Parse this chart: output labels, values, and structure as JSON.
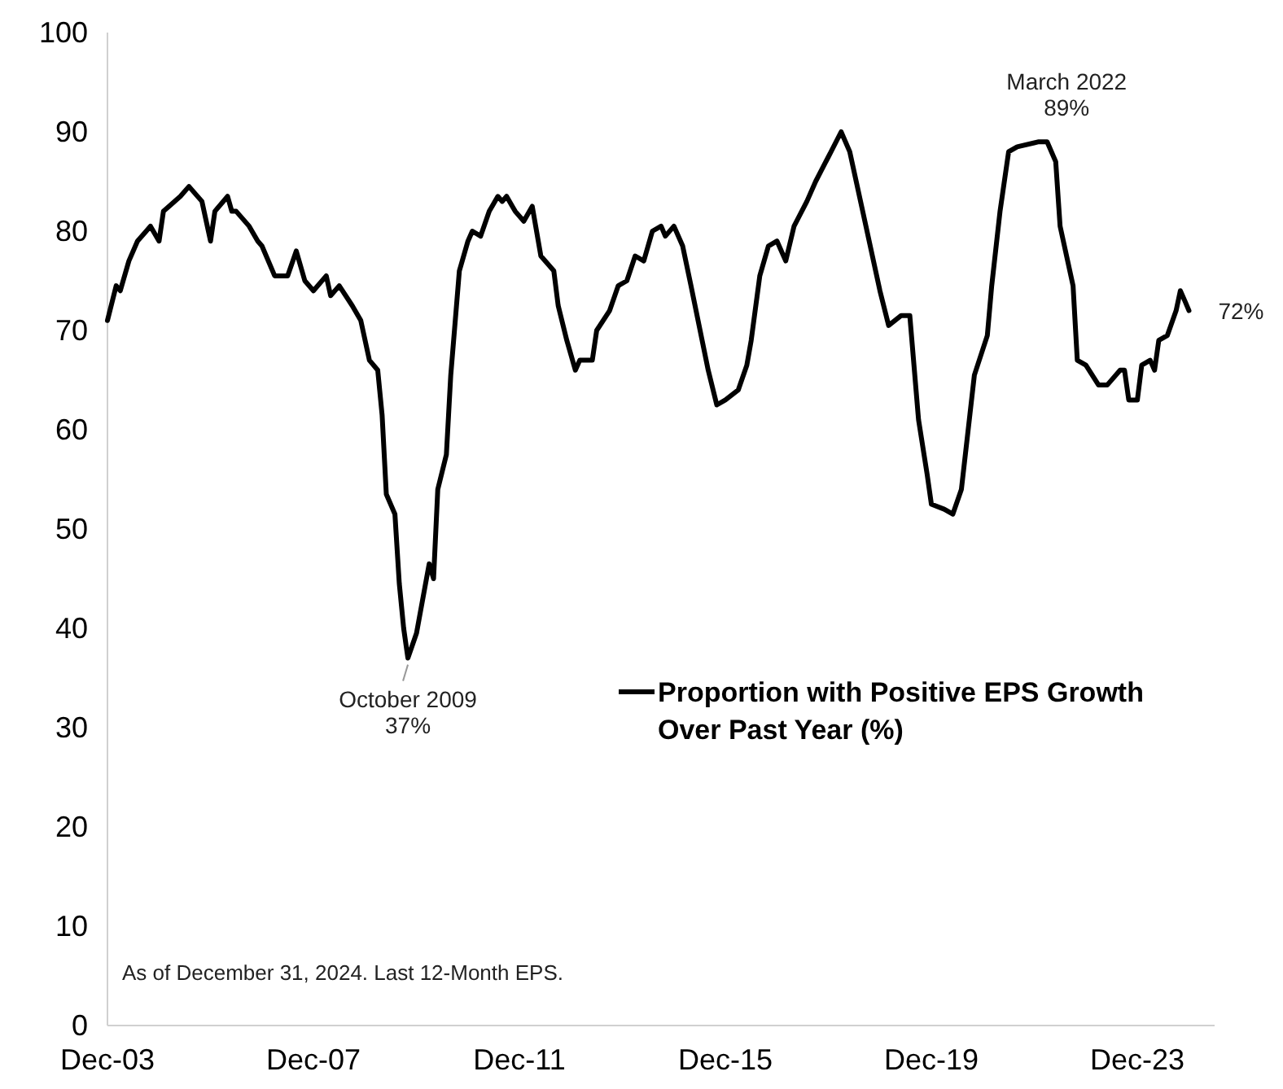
{
  "chart_data": {
    "type": "line",
    "x": [
      "2003-12",
      "2004-02",
      "2004-03",
      "2004-05",
      "2004-07",
      "2004-09",
      "2004-10",
      "2004-12",
      "2005-01",
      "2005-05",
      "2005-07",
      "2005-10",
      "2005-12",
      "2006-01",
      "2006-04",
      "2006-05",
      "2006-06",
      "2006-09",
      "2006-11",
      "2006-12",
      "2007-03",
      "2007-06",
      "2007-08",
      "2007-10",
      "2007-12",
      "2008-03",
      "2008-04",
      "2008-06",
      "2008-09",
      "2008-11",
      "2009-01",
      "2009-03",
      "2009-04",
      "2009-05",
      "2009-07",
      "2009-08",
      "2009-09",
      "2009-10",
      "2009-12",
      "2010-03",
      "2010-04",
      "2010-05",
      "2010-07",
      "2010-08",
      "2010-10",
      "2010-12",
      "2011-01",
      "2011-03",
      "2011-05",
      "2011-07",
      "2011-08",
      "2011-09",
      "2011-11",
      "2012-01",
      "2012-03",
      "2012-05",
      "2012-08",
      "2012-09",
      "2012-11",
      "2013-01",
      "2013-02",
      "2013-05",
      "2013-06",
      "2013-09",
      "2013-11",
      "2014-01",
      "2014-03",
      "2014-05",
      "2014-07",
      "2014-09",
      "2014-10",
      "2014-12",
      "2015-02",
      "2015-04",
      "2015-08",
      "2015-10",
      "2015-12",
      "2016-03",
      "2016-05",
      "2016-06",
      "2016-08",
      "2016-10",
      "2016-12",
      "2017-02",
      "2017-04",
      "2017-07",
      "2017-09",
      "2017-12",
      "2018-03",
      "2018-05",
      "2018-08",
      "2018-10",
      "2018-12",
      "2019-02",
      "2019-05",
      "2019-07",
      "2019-09",
      "2019-11",
      "2019-12",
      "2020-03",
      "2020-05",
      "2020-07",
      "2020-10",
      "2021-01",
      "2021-02",
      "2021-04",
      "2021-06",
      "2021-08",
      "2022-01",
      "2022-03",
      "2022-05",
      "2022-06",
      "2022-09",
      "2022-10",
      "2022-12",
      "2023-03",
      "2023-05",
      "2023-08",
      "2023-09",
      "2023-10",
      "2023-12",
      "2024-01",
      "2024-03",
      "2024-04",
      "2024-05",
      "2024-07",
      "2024-09",
      "2024-10",
      "2024-11",
      "2024-12"
    ],
    "series": [
      {
        "name": "Proportion with Positive EPS Growth Over Past Year (%)",
        "color": "#000000",
        "values": [
          71,
          74.5,
          74,
          77,
          79,
          80,
          80.5,
          79,
          82,
          83.5,
          84.5,
          83,
          79,
          82,
          83.5,
          82,
          82,
          80.5,
          79,
          78.5,
          75.5,
          75.5,
          78,
          75,
          74,
          75.5,
          73.5,
          74.5,
          72.5,
          71,
          67,
          66,
          61.5,
          53.5,
          51.5,
          44.5,
          40,
          37,
          39.5,
          46.5,
          45,
          54,
          57.5,
          65.5,
          76,
          79,
          80,
          79.5,
          82,
          83.5,
          83,
          83.5,
          82,
          81,
          82.5,
          77.5,
          76,
          72.5,
          69,
          66,
          67,
          67,
          70,
          72,
          74.5,
          75,
          77.5,
          77,
          80,
          80.5,
          79.5,
          80.5,
          78.5,
          74.5,
          66,
          62.5,
          63,
          64,
          66.5,
          69,
          75.5,
          78.5,
          79,
          77,
          80.5,
          83,
          85,
          87.5,
          90,
          88,
          82,
          78,
          74,
          70.5,
          71.5,
          71.5,
          61,
          55.5,
          52.5,
          52,
          51.5,
          54,
          65.5,
          69.5,
          74.5,
          82,
          88,
          88.5,
          89,
          89,
          87,
          80.5,
          74.5,
          67,
          66.5,
          64.5,
          64.5,
          66,
          66,
          63,
          63,
          66.5,
          67,
          66,
          69,
          69.5,
          72,
          74,
          73,
          72
        ]
      }
    ],
    "xlim": [
      "2003-12",
      "2025-06"
    ],
    "xticks": [
      {
        "value": "2003-12",
        "label": "Dec-03"
      },
      {
        "value": "2007-12",
        "label": "Dec-07"
      },
      {
        "value": "2011-12",
        "label": "Dec-11"
      },
      {
        "value": "2015-12",
        "label": "Dec-15"
      },
      {
        "value": "2019-12",
        "label": "Dec-19"
      },
      {
        "value": "2023-12",
        "label": "Dec-23"
      }
    ],
    "ylim": [
      0,
      100
    ],
    "yticks": [
      0,
      10,
      20,
      30,
      40,
      50,
      60,
      70,
      80,
      90,
      100
    ],
    "grid": false,
    "legend": "right",
    "line_style": "solid",
    "marker": "none",
    "annotations": [
      {
        "text": "October 2009\n37%",
        "x": "2009-10",
        "y": 37
      },
      {
        "text": "March 2022\n89%",
        "x": "2022-03",
        "y": 89
      },
      {
        "text": "72%",
        "x": "2024-12",
        "y": 72
      },
      "As of December 31, 2024. Last 12-Month EPS."
    ]
  }
}
